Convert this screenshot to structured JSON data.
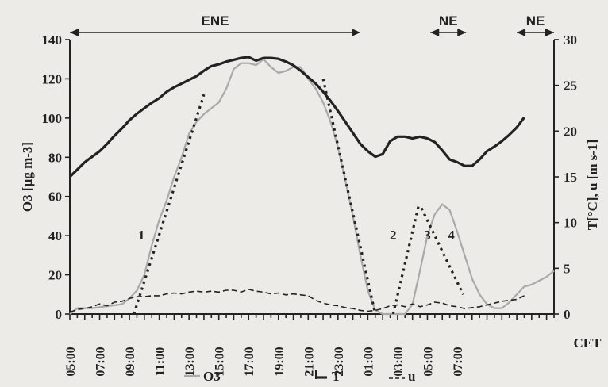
{
  "chart_data": {
    "type": "line",
    "xlabel": "CET",
    "ylabel_left": "O3 [µg m-3]",
    "ylabel_right": "T[°C], u [m s-1]",
    "ylim_left": [
      0,
      140
    ],
    "ylim_right": [
      0,
      30
    ],
    "left_ticks": [
      "0",
      "20",
      "40",
      "60",
      "80",
      "100",
      "120",
      "140"
    ],
    "right_ticks": [
      "0",
      "5",
      "10",
      "15",
      "20",
      "25",
      "30"
    ],
    "x_tick_labels": [
      "05:00",
      "07:00",
      "09:00",
      "11:00",
      "13:00",
      "15:00",
      "17:00",
      "19:00",
      "21:00",
      "23:00",
      "01:00",
      "03:00",
      "05:00",
      "07:00"
    ],
    "wind_directions": [
      {
        "label": "ENE",
        "from_hour": 0,
        "to_hour": 19.5
      },
      {
        "label": "NE",
        "from_hour": 24.2,
        "to_hour": 26.6
      },
      {
        "label": "NE",
        "from_hour": 30.0,
        "to_hour": 32.5
      }
    ],
    "segment_labels": [
      {
        "label": "1",
        "hour": 4.8,
        "o3": 38
      },
      {
        "label": "2",
        "hour": 21.7,
        "o3": 38
      },
      {
        "label": "3",
        "hour": 24.0,
        "o3": 38
      },
      {
        "label": "4",
        "hour": 25.6,
        "o3": 38
      }
    ],
    "series": [
      {
        "name": "O3",
        "axis": "left",
        "color": "#a9a9a9",
        "style": "solid",
        "points": [
          [
            0,
            0
          ],
          [
            0.5,
            3
          ],
          [
            1.5,
            3
          ],
          [
            2.5,
            4
          ],
          [
            3.5,
            5
          ],
          [
            4,
            8
          ],
          [
            4.5,
            12
          ],
          [
            5,
            20
          ],
          [
            5.5,
            35
          ],
          [
            6,
            48
          ],
          [
            6.5,
            58
          ],
          [
            7,
            70
          ],
          [
            7.5,
            80
          ],
          [
            8,
            92
          ],
          [
            8.5,
            98
          ],
          [
            9,
            102
          ],
          [
            9.5,
            105
          ],
          [
            10,
            108
          ],
          [
            10.5,
            115
          ],
          [
            11,
            125
          ],
          [
            11.5,
            128
          ],
          [
            12,
            128
          ],
          [
            12.5,
            127
          ],
          [
            13,
            130
          ],
          [
            13.5,
            126
          ],
          [
            14,
            123
          ],
          [
            14.5,
            124
          ],
          [
            15,
            126
          ],
          [
            15.5,
            126
          ],
          [
            16,
            120
          ],
          [
            16.5,
            115
          ],
          [
            17,
            108
          ],
          [
            17.5,
            98
          ],
          [
            18,
            85
          ],
          [
            18.5,
            68
          ],
          [
            19,
            50
          ],
          [
            19.5,
            30
          ],
          [
            20,
            12
          ],
          [
            20.5,
            2
          ],
          [
            21,
            0
          ],
          [
            22.5,
            0
          ],
          [
            23,
            5
          ],
          [
            23.5,
            22
          ],
          [
            24,
            40
          ],
          [
            24.5,
            51
          ],
          [
            25,
            56
          ],
          [
            25.5,
            53
          ],
          [
            26,
            42
          ],
          [
            26.5,
            30
          ],
          [
            27,
            18
          ],
          [
            27.5,
            10
          ],
          [
            28,
            5
          ],
          [
            28.5,
            3
          ],
          [
            29,
            3
          ],
          [
            29.5,
            6
          ],
          [
            30,
            10
          ],
          [
            30.5,
            14
          ],
          [
            31,
            15
          ],
          [
            31.5,
            17
          ],
          [
            32,
            19
          ],
          [
            32.5,
            22
          ]
        ]
      },
      {
        "name": "T",
        "axis": "right",
        "color": "#222222",
        "style": "solid-thick",
        "points": [
          [
            0,
            15
          ],
          [
            0.5,
            15.8
          ],
          [
            1,
            16.6
          ],
          [
            1.5,
            17.2
          ],
          [
            2,
            17.8
          ],
          [
            2.5,
            18.6
          ],
          [
            3,
            19.5
          ],
          [
            3.5,
            20.3
          ],
          [
            4,
            21.2
          ],
          [
            4.5,
            21.9
          ],
          [
            5,
            22.5
          ],
          [
            5.5,
            23.1
          ],
          [
            6,
            23.6
          ],
          [
            6.5,
            24.3
          ],
          [
            7,
            24.8
          ],
          [
            7.5,
            25.2
          ],
          [
            8,
            25.6
          ],
          [
            8.5,
            26
          ],
          [
            9,
            26.6
          ],
          [
            9.5,
            27.1
          ],
          [
            10,
            27.3
          ],
          [
            10.5,
            27.6
          ],
          [
            11,
            27.8
          ],
          [
            11.5,
            28
          ],
          [
            12,
            28.1
          ],
          [
            12.5,
            27.7
          ],
          [
            13,
            28
          ],
          [
            13.5,
            28
          ],
          [
            14,
            27.9
          ],
          [
            14.5,
            27.6
          ],
          [
            15,
            27.2
          ],
          [
            15.5,
            26.6
          ],
          [
            16,
            25.9
          ],
          [
            16.5,
            25.2
          ],
          [
            17,
            24.3
          ],
          [
            17.5,
            23.3
          ],
          [
            18,
            22.2
          ],
          [
            18.5,
            21
          ],
          [
            19,
            19.8
          ],
          [
            19.5,
            18.6
          ],
          [
            20,
            17.8
          ],
          [
            20.5,
            17.2
          ],
          [
            21,
            17.5
          ],
          [
            21.5,
            18.9
          ],
          [
            22,
            19.4
          ],
          [
            22.5,
            19.4
          ],
          [
            23,
            19.2
          ],
          [
            23.5,
            19.4
          ],
          [
            24,
            19.2
          ],
          [
            24.5,
            18.8
          ],
          [
            25,
            17.9
          ],
          [
            25.5,
            16.9
          ],
          [
            26,
            16.6
          ],
          [
            26.5,
            16.2
          ],
          [
            27,
            16.2
          ],
          [
            27.5,
            16.9
          ],
          [
            28,
            17.8
          ],
          [
            28.5,
            18.3
          ],
          [
            29,
            18.9
          ],
          [
            29.5,
            19.6
          ],
          [
            30,
            20.4
          ],
          [
            30.5,
            21.5
          ]
        ]
      },
      {
        "name": "u",
        "axis": "right",
        "color": "#222222",
        "style": "dashed",
        "points": [
          [
            0,
            0.2
          ],
          [
            0.5,
            0.5
          ],
          [
            1,
            0.6
          ],
          [
            1.5,
            0.8
          ],
          [
            2,
            1.1
          ],
          [
            2.5,
            0.9
          ],
          [
            3,
            1.3
          ],
          [
            3.5,
            1.4
          ],
          [
            4,
            1.7
          ],
          [
            4.5,
            1.9
          ],
          [
            5,
            1.9
          ],
          [
            5.5,
            2
          ],
          [
            6,
            2
          ],
          [
            6.5,
            2.2
          ],
          [
            7,
            2.3
          ],
          [
            7.5,
            2.2
          ],
          [
            8,
            2.4
          ],
          [
            8.5,
            2.5
          ],
          [
            9,
            2.4
          ],
          [
            9.5,
            2.5
          ],
          [
            10,
            2.4
          ],
          [
            10.5,
            2.6
          ],
          [
            11,
            2.6
          ],
          [
            11.5,
            2.4
          ],
          [
            12,
            2.7
          ],
          [
            12.5,
            2.5
          ],
          [
            13,
            2.4
          ],
          [
            13.5,
            2.2
          ],
          [
            14,
            2.3
          ],
          [
            14.5,
            2.1
          ],
          [
            15,
            2.2
          ],
          [
            15.5,
            2.1
          ],
          [
            16,
            2.0
          ],
          [
            16.5,
            1.5
          ],
          [
            17,
            1.2
          ],
          [
            17.5,
            1.0
          ],
          [
            18,
            0.9
          ],
          [
            18.5,
            0.7
          ],
          [
            19,
            0.6
          ],
          [
            19.5,
            0.4
          ],
          [
            20,
            0.3
          ],
          [
            20.5,
            0.4
          ],
          [
            21,
            0.6
          ],
          [
            21.5,
            0.9
          ],
          [
            22,
            1.0
          ],
          [
            22.5,
            0.8
          ],
          [
            23,
            1.1
          ],
          [
            23.5,
            0.8
          ],
          [
            24,
            1.0
          ],
          [
            24.5,
            1.3
          ],
          [
            25,
            1.2
          ],
          [
            25.5,
            0.9
          ],
          [
            26,
            0.8
          ],
          [
            26.5,
            0.6
          ],
          [
            27,
            0.7
          ],
          [
            27.5,
            0.8
          ],
          [
            28,
            1.0
          ],
          [
            28.5,
            1.2
          ],
          [
            29,
            1.4
          ],
          [
            29.5,
            1.5
          ],
          [
            30,
            1.6
          ],
          [
            30.5,
            2.0
          ]
        ]
      }
    ],
    "fit_lines": [
      {
        "name": "fit-1",
        "color": "#222222",
        "points": [
          [
            4.3,
            0
          ],
          [
            9,
            112
          ]
        ]
      },
      {
        "name": "fit-2",
        "color": "#222222",
        "points": [
          [
            17,
            120
          ],
          [
            20.5,
            0
          ]
        ]
      },
      {
        "name": "fit-3",
        "color": "#222222",
        "points": [
          [
            21.7,
            0
          ],
          [
            23.4,
            55
          ]
        ]
      },
      {
        "name": "fit-4",
        "color": "#222222",
        "points": [
          [
            23.6,
            54
          ],
          [
            26.4,
            10
          ]
        ]
      }
    ]
  },
  "legend": {
    "o3_label": "O3",
    "t_label": "T",
    "u_label": "u"
  }
}
